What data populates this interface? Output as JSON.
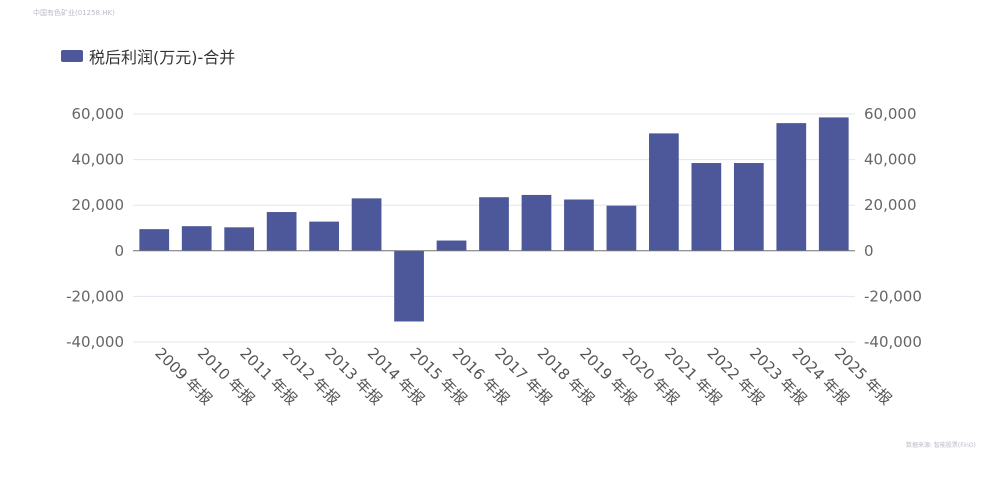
{
  "header": {
    "corner_title": "中国有色矿业(01258.HK)"
  },
  "footer": {
    "source_note": "数据来源: 智能股票(FinO)"
  },
  "legend": {
    "label": "税后利润(万元)-合并",
    "color": "#4c5899"
  },
  "chart_data": {
    "type": "bar",
    "categories": [
      "2009 年报",
      "2010 年报",
      "2011 年报",
      "2012 年报",
      "2013 年报",
      "2014 年报",
      "2015 年报",
      "2016 年报",
      "2017 年报",
      "2018 年报",
      "2019 年报",
      "2020 年报",
      "2021 年报",
      "2022 年报",
      "2023 年报",
      "2024 年报",
      "2025 年报"
    ],
    "series": [
      {
        "name": "税后利润(万元)-合并",
        "color": "#4c5899",
        "values": [
          9500,
          10800,
          10300,
          17000,
          12800,
          23000,
          -31000,
          4500,
          23500,
          24500,
          22500,
          19800,
          51500,
          38500,
          38500,
          56000,
          58500
        ]
      }
    ],
    "ylim": [
      -40000,
      60000
    ],
    "yticks": [
      60000,
      40000,
      20000,
      0,
      -20000,
      -40000
    ],
    "ytick_labels": [
      "60,000",
      "40,000",
      "20,000",
      "0",
      "-20,000",
      "-40,000"
    ],
    "grid": true,
    "legend_position": "top-left",
    "dual_y_axis": true
  }
}
